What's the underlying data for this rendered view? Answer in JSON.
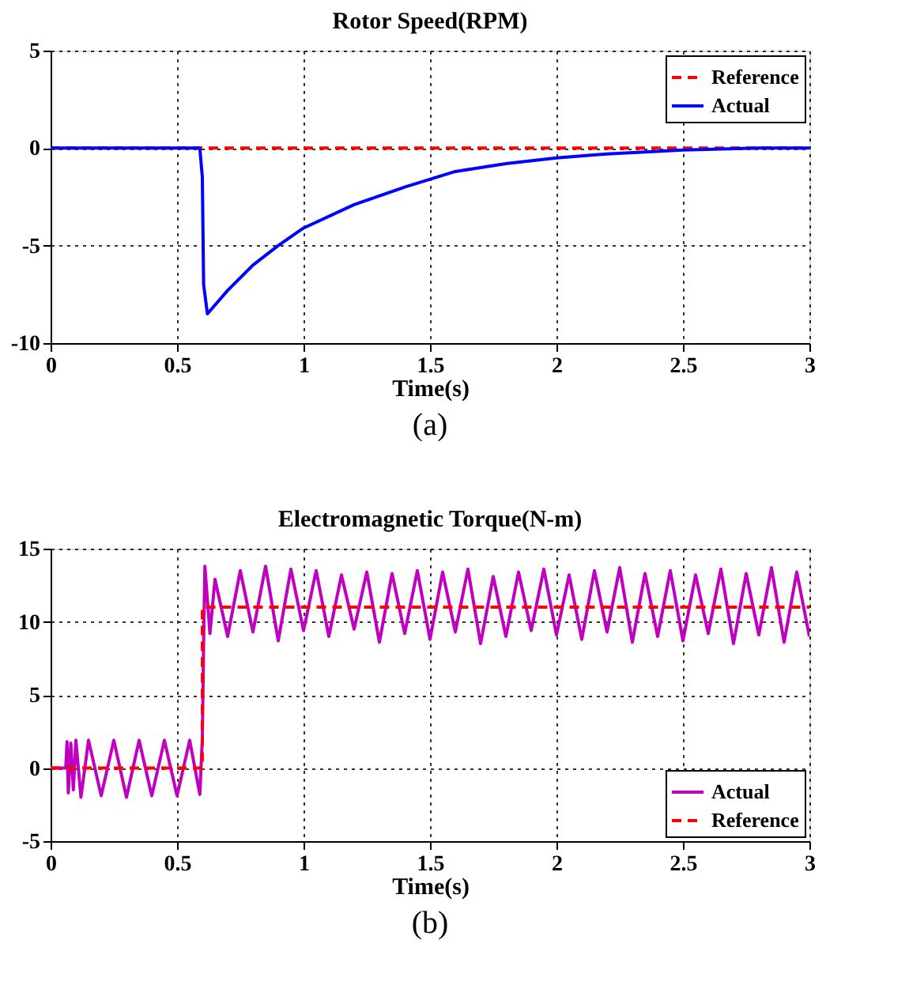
{
  "chart_data": [
    {
      "type": "line",
      "title": "Rotor Speed(RPM)",
      "xlabel": "Time(s)",
      "annotations": [
        "(a)"
      ],
      "xlim": [
        0,
        3
      ],
      "xticks": [
        0,
        0.5,
        1,
        1.5,
        2,
        2.5,
        3
      ],
      "ylim": [
        -10,
        5
      ],
      "yticks": [
        -10,
        -5,
        0,
        5
      ],
      "grid": true,
      "legend": "top right",
      "series": [
        {
          "name": "Reference",
          "color": "#ff0000",
          "line_style": "dashed",
          "x": [
            0,
            3
          ],
          "values": [
            0,
            0
          ]
        },
        {
          "name": "Actual",
          "color": "#0000ff",
          "line_style": "solid",
          "x": [
            0,
            0.58,
            0.59,
            0.6,
            0.605,
            0.62,
            0.7,
            0.8,
            0.9,
            1.0,
            1.2,
            1.4,
            1.6,
            1.8,
            2.0,
            2.2,
            2.5,
            2.8,
            3.0
          ],
          "values": [
            0,
            0,
            0,
            -1.5,
            -7,
            -8.5,
            -7.3,
            -6,
            -5,
            -4.1,
            -2.9,
            -2.0,
            -1.2,
            -0.8,
            -0.5,
            -0.3,
            -0.1,
            0,
            0
          ]
        }
      ]
    },
    {
      "type": "line",
      "title": "Electromagnetic Torque(N-m)",
      "xlabel": "Time(s)",
      "annotations": [
        "(b)"
      ],
      "xlim": [
        0,
        3
      ],
      "xticks": [
        0,
        0.5,
        1,
        1.5,
        2,
        2.5,
        3
      ],
      "ylim": [
        -5,
        15
      ],
      "yticks": [
        -5,
        0,
        5,
        10,
        15
      ],
      "grid": true,
      "legend": "bottom right",
      "series": [
        {
          "name": "Actual",
          "color": "#c000c0",
          "line_style": "solid",
          "x": [
            0,
            0.06,
            0.065,
            0.07,
            0.08,
            0.09,
            0.1,
            0.12,
            0.15,
            0.2,
            0.25,
            0.3,
            0.35,
            0.4,
            0.45,
            0.5,
            0.55,
            0.59,
            0.6,
            0.605,
            0.61,
            0.63,
            0.65,
            0.7,
            0.75,
            0.8,
            0.85,
            0.9,
            0.95,
            1.0,
            1.05,
            1.1,
            1.15,
            1.2,
            1.25,
            1.3,
            1.35,
            1.4,
            1.45,
            1.5,
            1.55,
            1.6,
            1.65,
            1.7,
            1.75,
            1.8,
            1.85,
            1.9,
            1.95,
            2.0,
            2.05,
            2.1,
            2.15,
            2.2,
            2.25,
            2.3,
            2.35,
            2.4,
            2.45,
            2.5,
            2.55,
            2.6,
            2.65,
            2.7,
            2.75,
            2.8,
            2.85,
            2.9,
            2.95,
            3.0
          ],
          "values": [
            0,
            0,
            1.8,
            -1.7,
            1.7,
            -1.5,
            1.9,
            -2.0,
            1.9,
            -1.9,
            1.9,
            -2.0,
            1.9,
            -1.9,
            1.9,
            -1.9,
            1.9,
            -1.8,
            2,
            8.5,
            13.8,
            9.2,
            12.9,
            9.0,
            13.5,
            9.3,
            13.8,
            8.7,
            13.6,
            9.4,
            13.5,
            9.0,
            13.2,
            9.5,
            13.4,
            8.6,
            13.3,
            9.2,
            13.5,
            8.8,
            13.4,
            9.3,
            13.6,
            8.5,
            13.1,
            9.0,
            13.4,
            9.4,
            13.6,
            9.1,
            13.2,
            8.8,
            13.5,
            9.3,
            13.7,
            8.6,
            13.3,
            9.0,
            13.5,
            8.7,
            13.2,
            9.2,
            13.6,
            8.5,
            13.3,
            9.1,
            13.7,
            8.6,
            13.4,
            9.0
          ]
        },
        {
          "name": "Reference",
          "color": "#ff0000",
          "line_style": "dashed",
          "x": [
            0,
            0.6,
            0.6,
            3
          ],
          "values": [
            0,
            0,
            11,
            11
          ]
        }
      ]
    }
  ]
}
